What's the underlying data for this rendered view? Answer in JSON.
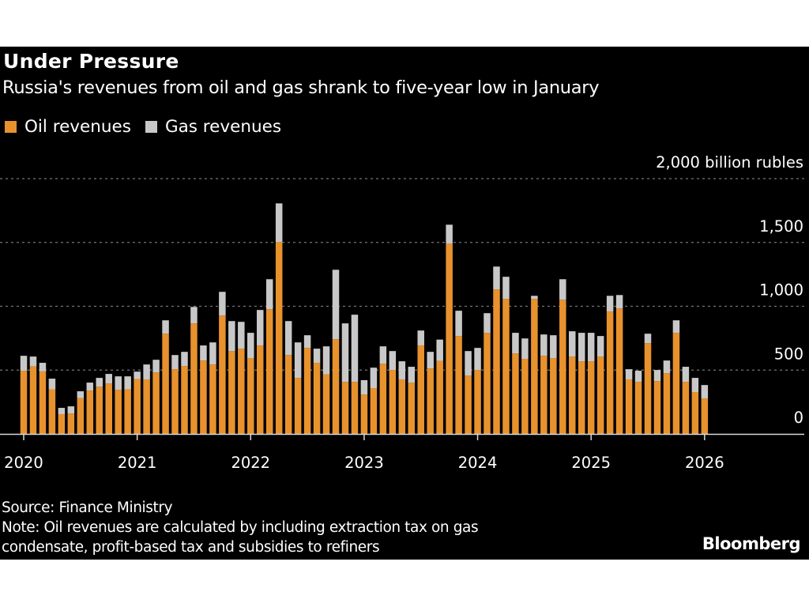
{
  "header": {
    "title": "Under Pressure",
    "subtitle": "Russia's revenues from oil and gas shrank to five-year low in January"
  },
  "legend": [
    {
      "label": "Oil revenues",
      "color": "#E8922E"
    },
    {
      "label": "Gas revenues",
      "color": "#C8C8C8"
    }
  ],
  "footer": {
    "source": "Source: Finance Ministry",
    "note_line1": "Note: Oil revenues are calculated by including extraction tax on gas",
    "note_line2": "condensate, profit-based tax and subsidies to refiners",
    "brand": "Bloomberg"
  },
  "chart_data": {
    "type": "bar",
    "stacked": true,
    "title": "Under Pressure",
    "subtitle": "Russia's revenues from oil and gas shrank to five-year low in January",
    "xlabel": "",
    "ylabel": "billion rubles",
    "y_unit_label": "2,000 billion rubles",
    "ylim": [
      0,
      2000
    ],
    "yticks": [
      0,
      500,
      1000,
      1500,
      2000
    ],
    "ytick_labels": [
      "0",
      "500",
      "1,000",
      "1,500",
      "2,000 billion rubles"
    ],
    "xtick_labels": [
      "2020",
      "2021",
      "2022",
      "2023",
      "2024",
      "2025",
      "2026"
    ],
    "grid": true,
    "legend_position": "top-left",
    "categories": [
      "2020-01",
      "2020-02",
      "2020-03",
      "2020-04",
      "2020-05",
      "2020-06",
      "2020-07",
      "2020-08",
      "2020-09",
      "2020-10",
      "2020-11",
      "2020-12",
      "2021-01",
      "2021-02",
      "2021-03",
      "2021-04",
      "2021-05",
      "2021-06",
      "2021-07",
      "2021-08",
      "2021-09",
      "2021-10",
      "2021-11",
      "2021-12",
      "2022-01",
      "2022-02",
      "2022-03",
      "2022-04",
      "2022-05",
      "2022-06",
      "2022-07",
      "2022-08",
      "2022-09",
      "2022-10",
      "2022-11",
      "2022-12",
      "2023-01",
      "2023-02",
      "2023-03",
      "2023-04",
      "2023-05",
      "2023-06",
      "2023-07",
      "2023-08",
      "2023-09",
      "2023-10",
      "2023-11",
      "2023-12",
      "2024-01",
      "2024-02",
      "2024-03",
      "2024-04",
      "2024-05",
      "2024-06",
      "2024-07",
      "2024-08",
      "2024-09",
      "2024-10",
      "2024-11",
      "2024-12",
      "2025-01",
      "2025-02",
      "2025-03",
      "2025-04",
      "2025-05",
      "2025-06",
      "2025-07",
      "2025-08",
      "2025-09",
      "2025-10",
      "2025-11",
      "2025-12",
      "2026-01"
    ],
    "series": [
      {
        "name": "Oil revenues",
        "color": "#E8922E",
        "values": [
          495,
          530,
          490,
          350,
          155,
          160,
          280,
          340,
          370,
          395,
          345,
          350,
          430,
          427,
          482,
          785,
          507,
          532,
          866,
          575,
          544,
          928,
          649,
          668,
          594,
          693,
          977,
          1503,
          618,
          439,
          674,
          557,
          467,
          742,
          408,
          408,
          309,
          359,
          550,
          501,
          427,
          402,
          693,
          513,
          572,
          1490,
          767,
          458,
          501,
          792,
          1132,
          1058,
          631,
          588,
          1058,
          612,
          594,
          1051,
          606,
          569,
          569,
          606,
          959,
          983,
          427,
          408,
          711,
          414,
          476,
          792,
          408,
          328,
          278
        ]
      },
      {
        "name": "Gas revenues",
        "color": "#C8C8C8",
        "values": [
          117,
          76,
          67,
          83,
          49,
          56,
          54,
          62,
          69,
          75,
          106,
          101,
          58,
          117,
          99,
          105,
          111,
          111,
          129,
          118,
          173,
          185,
          235,
          210,
          198,
          278,
          235,
          303,
          266,
          278,
          99,
          111,
          219,
          544,
          458,
          526,
          112,
          160,
          136,
          148,
          142,
          124,
          117,
          130,
          167,
          149,
          198,
          191,
          173,
          154,
          179,
          173,
          161,
          160,
          24,
          167,
          179,
          161,
          198,
          223,
          223,
          161,
          123,
          105,
          80,
          87,
          74,
          87,
          99,
          98,
          118,
          111,
          105
        ]
      }
    ]
  }
}
